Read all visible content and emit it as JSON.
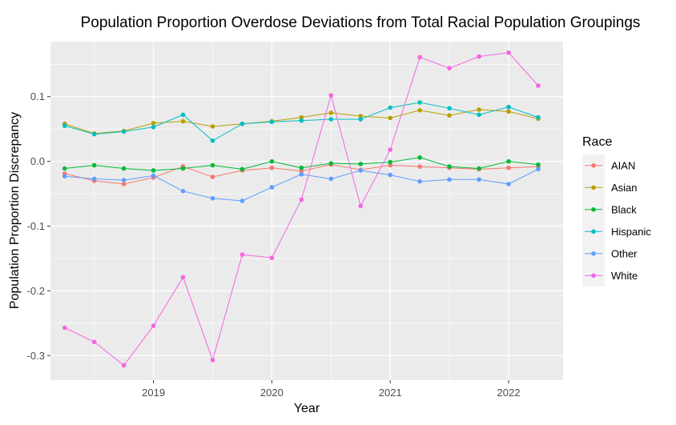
{
  "chart_data": {
    "type": "line",
    "title": "Population Proportion Overdose Deviations from Total Racial Population Groupings",
    "xlabel": "Year",
    "ylabel": "Population Proportion Discrepancy",
    "xlim": [
      2018.13,
      2022.46
    ],
    "ylim": [
      -0.338,
      0.185
    ],
    "x_ticks": [
      2019,
      2020,
      2021,
      2022
    ],
    "x_tick_labels": [
      "2019",
      "2020",
      "2021",
      "2022"
    ],
    "y_ticks": [
      -0.3,
      -0.2,
      -0.1,
      0.0,
      0.1
    ],
    "y_tick_labels": [
      "-0.3",
      "-0.2",
      "-0.1",
      "0.0",
      "0.1"
    ],
    "grid": true,
    "legend": {
      "title": "Race",
      "position": "right"
    },
    "x": [
      2018.25,
      2018.5,
      2018.75,
      2019.0,
      2019.25,
      2019.5,
      2019.75,
      2020.0,
      2020.25,
      2020.5,
      2020.75,
      2021.0,
      2021.25,
      2021.5,
      2021.75,
      2022.0,
      2022.25
    ],
    "series": [
      {
        "name": "AIAN",
        "color": "#F8766D",
        "values": [
          -0.019,
          -0.03,
          -0.035,
          -0.025,
          -0.008,
          -0.024,
          -0.014,
          -0.01,
          -0.015,
          -0.005,
          -0.013,
          -0.006,
          -0.008,
          -0.01,
          -0.012,
          -0.01,
          -0.008
        ]
      },
      {
        "name": "Asian",
        "color": "#B79F00",
        "values": [
          0.058,
          0.043,
          0.047,
          0.059,
          0.062,
          0.054,
          0.058,
          0.062,
          0.068,
          0.075,
          0.07,
          0.067,
          0.079,
          0.071,
          0.08,
          0.077,
          0.066
        ]
      },
      {
        "name": "Black",
        "color": "#00BA38",
        "values": [
          -0.011,
          -0.006,
          -0.011,
          -0.014,
          -0.011,
          -0.006,
          -0.012,
          0.0,
          -0.01,
          -0.003,
          -0.004,
          -0.001,
          0.006,
          -0.008,
          -0.011,
          0.0,
          -0.005
        ]
      },
      {
        "name": "Hispanic",
        "color": "#00BFC4",
        "values": [
          0.055,
          0.042,
          0.046,
          0.053,
          0.072,
          0.032,
          0.058,
          0.061,
          0.063,
          0.065,
          0.065,
          0.083,
          0.091,
          0.082,
          0.072,
          0.084,
          0.068
        ]
      },
      {
        "name": "Other",
        "color": "#619CFF",
        "values": [
          -0.023,
          -0.027,
          -0.029,
          -0.022,
          -0.046,
          -0.057,
          -0.061,
          -0.04,
          -0.02,
          -0.027,
          -0.014,
          -0.021,
          -0.031,
          -0.028,
          -0.028,
          -0.035,
          -0.012
        ]
      },
      {
        "name": "White",
        "color": "#F564E3",
        "values": [
          -0.257,
          -0.279,
          -0.315,
          -0.254,
          -0.179,
          -0.307,
          -0.144,
          -0.149,
          -0.059,
          0.102,
          -0.069,
          0.018,
          0.161,
          0.144,
          0.162,
          0.168,
          0.117
        ]
      }
    ]
  }
}
